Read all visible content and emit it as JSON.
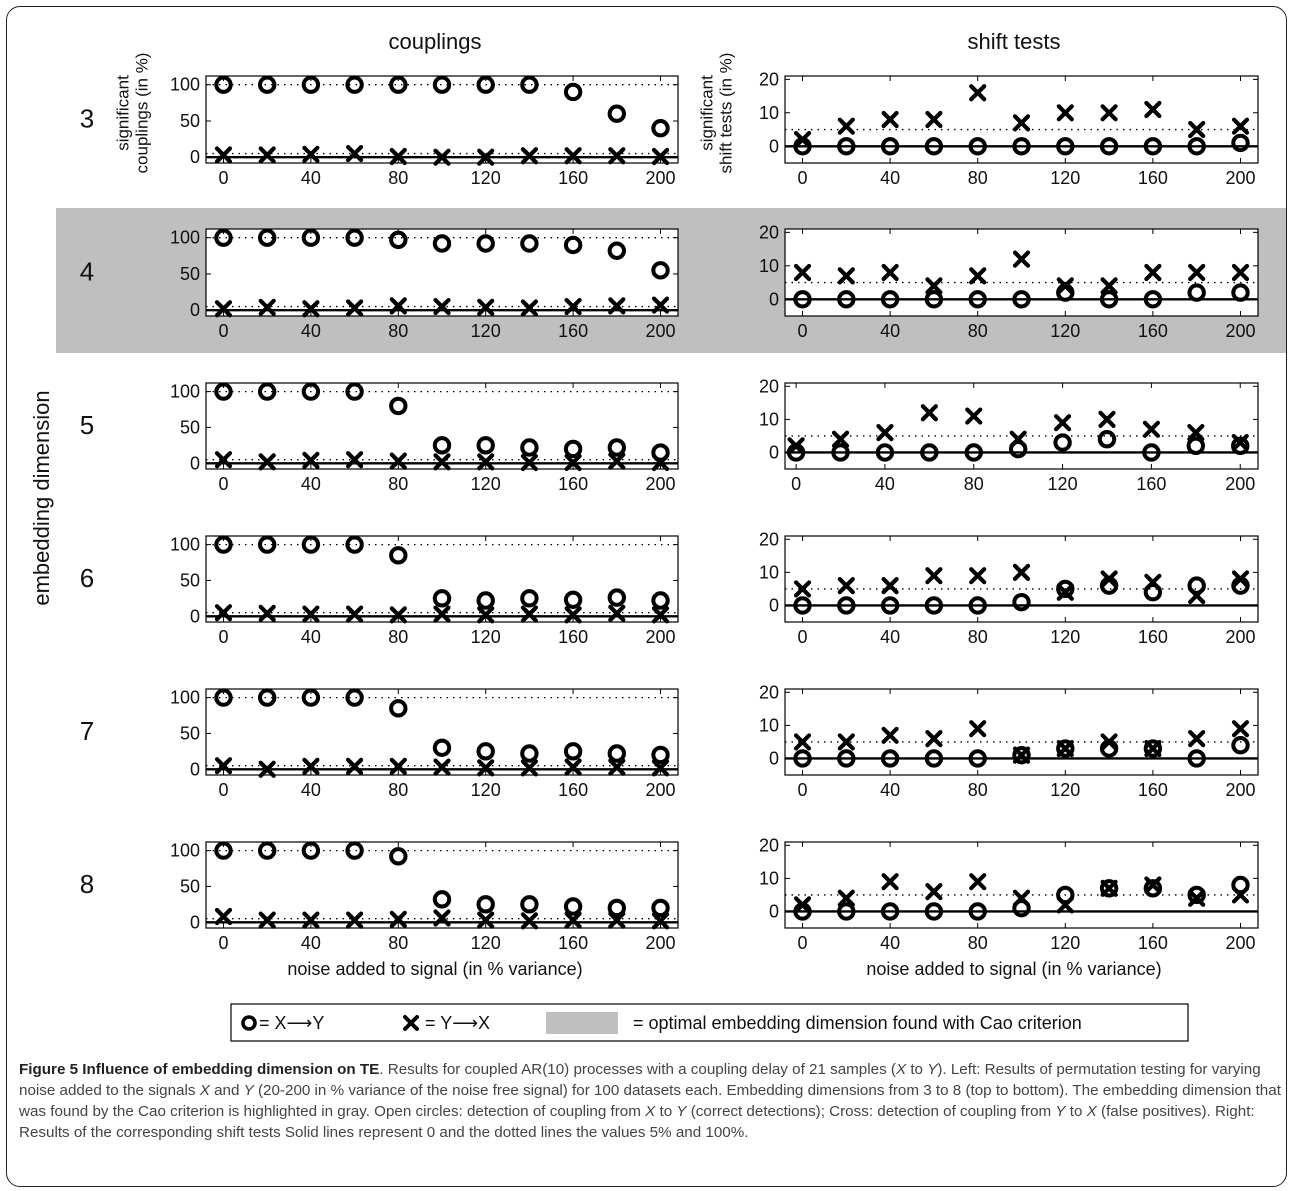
{
  "figure": {
    "col_titles": [
      "couplings",
      "shift tests"
    ],
    "ylabel_outer": "embedding dimension",
    "left_ylabel": [
      "significant",
      "couplings (in %)"
    ],
    "right_ylabel": [
      "significant",
      "shift tests (in %)"
    ],
    "xlabel": "noise added to signal (in % variance)",
    "colors": {
      "marker": "#000000",
      "highlight": "#bfbfbf",
      "axis": "#000000"
    }
  },
  "legend": {
    "circle_label": "= X⟶Y",
    "cross_label": "= Y⟶X",
    "gray_label": "= optimal embedding dimension found with Cao criterion"
  },
  "caption": {
    "title": "Figure 5 Influence of embedding dimension on TE",
    "parts": [
      {
        "t": ". Results for coupled AR(10) processes with a coupling delay of 21 samples ("
      },
      {
        "t": "X",
        "i": true
      },
      {
        "t": " to "
      },
      {
        "t": "Y",
        "i": true
      },
      {
        "t": "). Left: Results of permutation testing for varying noise added to the signals "
      },
      {
        "t": "X",
        "i": true
      },
      {
        "t": " and "
      },
      {
        "t": "Y",
        "i": true
      },
      {
        "t": " (20-200 in % variance of the noise free signal) for 100 datasets each. Embedding dimensions from 3 to 8 (top to bottom). The embedding dimension that was found by the Cao criterion is highlighted in gray. Open circles: detection of coupling from "
      },
      {
        "t": "X",
        "i": true
      },
      {
        "t": " to "
      },
      {
        "t": "Y",
        "i": true
      },
      {
        "t": " (correct detections); Cross: detection of coupling from "
      },
      {
        "t": "Y",
        "i": true
      },
      {
        "t": " to "
      },
      {
        "t": "X",
        "i": true
      },
      {
        "t": " (false positives). Right: Results of the corresponding shift tests Solid lines represent 0 and the dotted lines the values 5% and 100%."
      }
    ]
  },
  "chart_data": [
    {
      "type": "scatter",
      "panel": "couplings",
      "row_label": "3",
      "highlight": false,
      "x": [
        0,
        20,
        40,
        60,
        80,
        100,
        120,
        140,
        160,
        180,
        200
      ],
      "xticks": [
        0,
        40,
        80,
        120,
        160,
        200
      ],
      "xlim": [
        -8,
        208
      ],
      "ylim": [
        -8,
        112
      ],
      "yticks": [
        0,
        50,
        100
      ],
      "hlines_dotted": [
        5,
        100
      ],
      "hline_solid": 0,
      "series": [
        {
          "marker": "circle",
          "values": [
            100,
            100,
            100,
            100,
            100,
            100,
            100,
            100,
            90,
            60,
            40
          ]
        },
        {
          "marker": "cross",
          "values": [
            3,
            3,
            4,
            5,
            1,
            0,
            0,
            2,
            2,
            2,
            1
          ]
        }
      ]
    },
    {
      "type": "scatter",
      "panel": "shift tests",
      "row_label": "3",
      "highlight": false,
      "x": [
        0,
        20,
        40,
        60,
        80,
        100,
        120,
        140,
        160,
        180,
        200
      ],
      "xticks": [
        0,
        40,
        80,
        120,
        160,
        200
      ],
      "xlim": [
        -8,
        208
      ],
      "ylim": [
        -5,
        21
      ],
      "yticks": [
        0,
        10,
        20
      ],
      "hlines_dotted": [
        5
      ],
      "hline_solid": 0,
      "series": [
        {
          "marker": "circle",
          "values": [
            0,
            0,
            0,
            0,
            0,
            0,
            0,
            0,
            0,
            0,
            1
          ]
        },
        {
          "marker": "cross",
          "values": [
            2,
            6,
            8,
            8,
            16,
            7,
            10,
            10,
            11,
            5,
            6
          ]
        }
      ]
    },
    {
      "type": "scatter",
      "panel": "couplings",
      "row_label": "4",
      "highlight": true,
      "x": [
        0,
        20,
        40,
        60,
        80,
        100,
        120,
        140,
        160,
        180,
        200
      ],
      "xticks": [
        0,
        40,
        80,
        120,
        160,
        200
      ],
      "xlim": [
        -8,
        208
      ],
      "ylim": [
        -8,
        112
      ],
      "yticks": [
        0,
        50,
        100
      ],
      "hlines_dotted": [
        5,
        100
      ],
      "hline_solid": 0,
      "series": [
        {
          "marker": "circle",
          "values": [
            100,
            100,
            100,
            100,
            97,
            92,
            92,
            92,
            90,
            82,
            55
          ]
        },
        {
          "marker": "cross",
          "values": [
            2,
            4,
            2,
            3,
            6,
            5,
            4,
            3,
            5,
            6,
            7
          ]
        }
      ]
    },
    {
      "type": "scatter",
      "panel": "shift tests",
      "row_label": "4",
      "highlight": true,
      "x": [
        0,
        20,
        40,
        60,
        80,
        100,
        120,
        140,
        160,
        180,
        200
      ],
      "xticks": [
        0,
        40,
        80,
        120,
        160,
        200
      ],
      "xlim": [
        -8,
        208
      ],
      "ylim": [
        -5,
        21
      ],
      "yticks": [
        0,
        10,
        20
      ],
      "hlines_dotted": [
        5
      ],
      "hline_solid": 0,
      "series": [
        {
          "marker": "circle",
          "values": [
            0,
            0,
            0,
            0,
            0,
            0,
            2,
            0,
            0,
            2,
            2
          ]
        },
        {
          "marker": "cross",
          "values": [
            8,
            7,
            8,
            4,
            7,
            12,
            4,
            4,
            8,
            8,
            8
          ]
        }
      ]
    },
    {
      "type": "scatter",
      "panel": "couplings",
      "row_label": "5",
      "highlight": false,
      "x": [
        0,
        20,
        40,
        60,
        80,
        100,
        120,
        140,
        160,
        180,
        200
      ],
      "xticks": [
        0,
        40,
        80,
        120,
        160,
        200
      ],
      "xlim": [
        -8,
        208
      ],
      "ylim": [
        -8,
        112
      ],
      "yticks": [
        0,
        50,
        100
      ],
      "hlines_dotted": [
        5,
        100
      ],
      "hline_solid": 0,
      "series": [
        {
          "marker": "circle",
          "values": [
            100,
            100,
            100,
            100,
            80,
            25,
            25,
            22,
            20,
            22,
            15
          ]
        },
        {
          "marker": "cross",
          "values": [
            5,
            2,
            4,
            5,
            3,
            2,
            2,
            1,
            1,
            3,
            1
          ]
        }
      ]
    },
    {
      "type": "scatter",
      "panel": "shift tests",
      "row_label": "5",
      "highlight": false,
      "x": [
        0,
        20,
        40,
        60,
        80,
        100,
        120,
        140,
        160,
        180,
        200
      ],
      "xticks": [
        0,
        40,
        80,
        120,
        160,
        200
      ],
      "xlim": [
        -5,
        208
      ],
      "ylim": [
        -5,
        21
      ],
      "yticks": [
        0,
        10,
        20
      ],
      "hlines_dotted": [
        5
      ],
      "hline_solid": 0,
      "series": [
        {
          "marker": "circle",
          "values": [
            0,
            0,
            0,
            0,
            0,
            1,
            3,
            4,
            0,
            2,
            2
          ]
        },
        {
          "marker": "cross",
          "values": [
            2,
            4,
            6,
            12,
            11,
            4,
            9,
            10,
            7,
            6,
            3
          ]
        }
      ]
    },
    {
      "type": "scatter",
      "panel": "couplings",
      "row_label": "6",
      "highlight": false,
      "x": [
        0,
        20,
        40,
        60,
        80,
        100,
        120,
        140,
        160,
        180,
        200
      ],
      "xticks": [
        0,
        40,
        80,
        120,
        160,
        200
      ],
      "xlim": [
        -8,
        208
      ],
      "ylim": [
        -8,
        112
      ],
      "yticks": [
        0,
        50,
        100
      ],
      "hlines_dotted": [
        5,
        100
      ],
      "hline_solid": 0,
      "series": [
        {
          "marker": "circle",
          "values": [
            100,
            100,
            100,
            100,
            85,
            25,
            22,
            25,
            23,
            26,
            22
          ]
        },
        {
          "marker": "cross",
          "values": [
            5,
            4,
            3,
            3,
            2,
            3,
            2,
            3,
            2,
            4,
            2
          ]
        }
      ]
    },
    {
      "type": "scatter",
      "panel": "shift tests",
      "row_label": "6",
      "highlight": false,
      "x": [
        0,
        20,
        40,
        60,
        80,
        100,
        120,
        140,
        160,
        180,
        200
      ],
      "xticks": [
        0,
        40,
        80,
        120,
        160,
        200
      ],
      "xlim": [
        -8,
        208
      ],
      "ylim": [
        -5,
        21
      ],
      "yticks": [
        0,
        10,
        20
      ],
      "hlines_dotted": [
        5
      ],
      "hline_solid": 0,
      "series": [
        {
          "marker": "circle",
          "values": [
            0,
            0,
            0,
            0,
            0,
            1,
            5,
            6,
            4,
            6,
            6
          ]
        },
        {
          "marker": "cross",
          "values": [
            5,
            6,
            6,
            9,
            9,
            10,
            4,
            8,
            7,
            3,
            8
          ]
        }
      ]
    },
    {
      "type": "scatter",
      "panel": "couplings",
      "row_label": "7",
      "highlight": false,
      "x": [
        0,
        20,
        40,
        60,
        80,
        100,
        120,
        140,
        160,
        180,
        200
      ],
      "xticks": [
        0,
        40,
        80,
        120,
        160,
        200
      ],
      "xlim": [
        -8,
        208
      ],
      "ylim": [
        -8,
        112
      ],
      "yticks": [
        0,
        50,
        100
      ],
      "hlines_dotted": [
        5,
        100
      ],
      "hline_solid": 0,
      "series": [
        {
          "marker": "circle",
          "values": [
            100,
            100,
            100,
            100,
            85,
            30,
            25,
            22,
            25,
            22,
            20
          ]
        },
        {
          "marker": "cross",
          "values": [
            5,
            0,
            4,
            4,
            4,
            3,
            2,
            2,
            3,
            3,
            2
          ]
        }
      ]
    },
    {
      "type": "scatter",
      "panel": "shift tests",
      "row_label": "7",
      "highlight": false,
      "x": [
        0,
        20,
        40,
        60,
        80,
        100,
        120,
        140,
        160,
        180,
        200
      ],
      "xticks": [
        0,
        40,
        80,
        120,
        160,
        200
      ],
      "xlim": [
        -8,
        208
      ],
      "ylim": [
        -5,
        21
      ],
      "yticks": [
        0,
        10,
        20
      ],
      "hlines_dotted": [
        5
      ],
      "hline_solid": 0,
      "series": [
        {
          "marker": "circle",
          "values": [
            0,
            0,
            0,
            0,
            0,
            1,
            3,
            3,
            3,
            0,
            4
          ]
        },
        {
          "marker": "cross",
          "values": [
            5,
            5,
            7,
            6,
            9,
            1,
            3,
            5,
            3,
            6,
            9
          ]
        }
      ]
    },
    {
      "type": "scatter",
      "panel": "couplings",
      "row_label": "8",
      "highlight": false,
      "x": [
        0,
        20,
        40,
        60,
        80,
        100,
        120,
        140,
        160,
        180,
        200
      ],
      "xticks": [
        0,
        40,
        80,
        120,
        160,
        200
      ],
      "xlim": [
        -8,
        208
      ],
      "ylim": [
        -8,
        112
      ],
      "yticks": [
        0,
        50,
        100
      ],
      "hlines_dotted": [
        5,
        100
      ],
      "hline_solid": 0,
      "series": [
        {
          "marker": "circle",
          "values": [
            100,
            100,
            100,
            100,
            92,
            32,
            25,
            25,
            22,
            20,
            20
          ]
        },
        {
          "marker": "cross",
          "values": [
            8,
            3,
            3,
            3,
            4,
            6,
            3,
            2,
            3,
            3,
            2
          ]
        }
      ]
    },
    {
      "type": "scatter",
      "panel": "shift tests",
      "row_label": "8",
      "highlight": false,
      "x": [
        0,
        20,
        40,
        60,
        80,
        100,
        120,
        140,
        160,
        180,
        200
      ],
      "xticks": [
        0,
        40,
        80,
        120,
        160,
        200
      ],
      "xlim": [
        -8,
        208
      ],
      "ylim": [
        -5,
        21
      ],
      "yticks": [
        0,
        10,
        20
      ],
      "hlines_dotted": [
        5
      ],
      "hline_solid": 0,
      "series": [
        {
          "marker": "circle",
          "values": [
            0,
            0,
            0,
            0,
            0,
            1,
            5,
            7,
            7,
            5,
            8
          ]
        },
        {
          "marker": "cross",
          "values": [
            2,
            4,
            9,
            6,
            9,
            4,
            2,
            7,
            8,
            4,
            5
          ]
        }
      ]
    }
  ]
}
